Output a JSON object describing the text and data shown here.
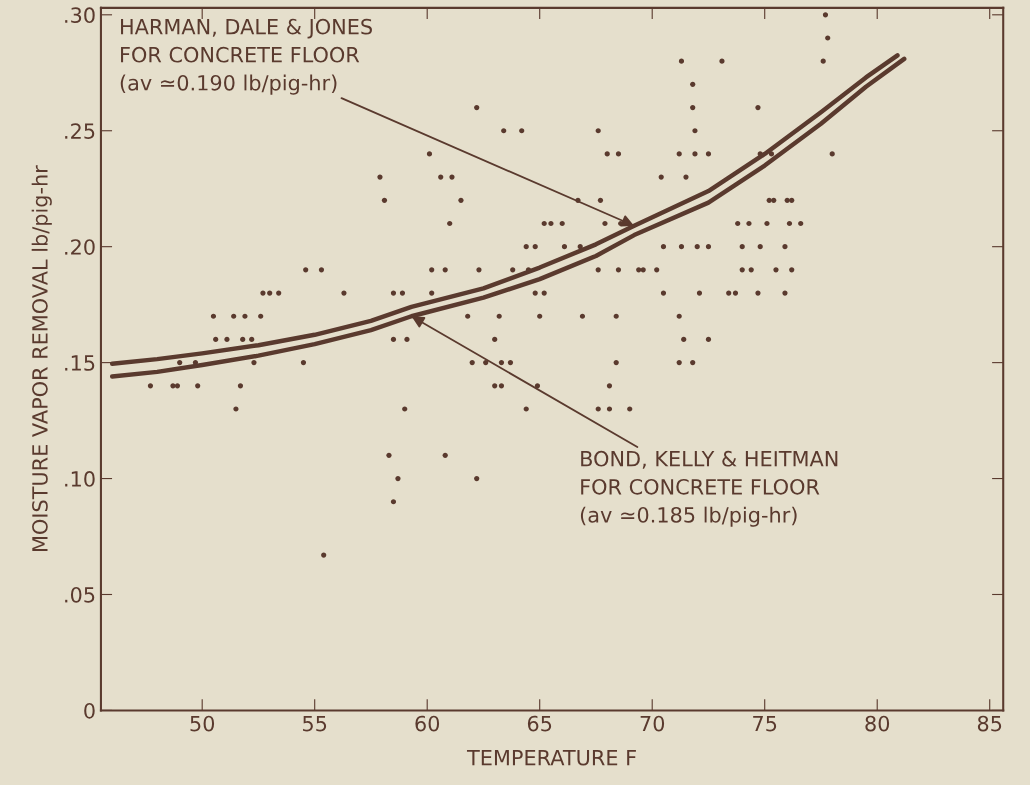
{
  "chart_data": {
    "type": "scatter",
    "xlabel": "TEMPERATURE F",
    "ylabel": "MOISTURE VAPOR REMOVAL lb/pig-hr",
    "xlim": [
      45.5,
      85.6
    ],
    "xticks": [
      50,
      55,
      60,
      65,
      70,
      75,
      80,
      85
    ],
    "ylim": [
      0,
      0.303
    ],
    "yticks": [
      {
        "value": 0,
        "label": "0"
      },
      {
        "value": 0.05,
        "label": ".05"
      },
      {
        "value": 0.1,
        "label": ".10"
      },
      {
        "value": 0.15,
        "label": ".15"
      },
      {
        "value": 0.2,
        "label": ".20"
      },
      {
        "value": 0.25,
        "label": ".25"
      },
      {
        "value": 0.3,
        "label": ".30"
      }
    ],
    "grid": false,
    "legend": false,
    "marker": "circle",
    "series": [
      {
        "color": "#5a3a2e",
        "x": [
          57.9,
          58.1,
          54.6,
          55.3,
          52.7,
          53.0,
          53.4,
          56.3,
          58.5,
          50.5,
          51.4,
          51.9,
          52.6,
          50.6,
          51.1,
          51.8,
          52.2,
          58.5,
          54.5,
          49.0,
          49.7,
          52.3,
          47.7,
          48.7,
          48.9,
          49.8,
          51.7,
          51.5,
          62.2,
          63.4,
          64.2,
          67.6,
          60.1,
          68.0,
          68.5,
          71.2,
          60.6,
          61.1,
          70.4,
          61.5,
          66.7,
          67.7,
          61.0,
          65.2,
          65.5,
          66.0,
          67.9,
          68.6,
          64.4,
          64.8,
          66.1,
          66.8,
          70.5,
          60.2,
          60.8,
          62.3,
          63.8,
          64.5,
          67.6,
          68.5,
          69.4,
          70.2,
          58.9,
          60.2,
          64.8,
          65.2,
          70.5,
          61.8,
          63.2,
          65.0,
          66.9,
          68.4,
          71.2,
          59.1,
          63.0,
          62.0,
          62.6,
          63.3,
          63.7,
          68.4,
          71.2,
          63.0,
          63.3,
          64.9,
          68.1,
          59.0,
          64.4,
          67.6,
          68.1,
          69.0,
          58.3,
          60.8,
          58.7,
          62.2,
          58.5,
          55.4,
          77.7,
          77.8,
          77.6,
          71.3,
          73.1,
          71.8,
          71.8,
          74.7,
          71.9,
          71.9,
          72.5,
          74.8,
          75.3,
          78.0,
          71.5,
          75.2,
          75.4,
          76.0,
          76.2,
          73.8,
          74.3,
          75.1,
          76.1,
          76.6,
          71.3,
          72.0,
          72.5,
          74.0,
          74.8,
          75.9,
          69.6,
          74.0,
          74.4,
          75.5,
          76.2,
          72.1,
          73.4,
          73.7,
          74.7,
          75.9,
          71.4,
          72.5,
          71.8
        ],
        "values": [
          0.23,
          0.22,
          0.19,
          0.19,
          0.18,
          0.18,
          0.18,
          0.18,
          0.18,
          0.17,
          0.17,
          0.17,
          0.17,
          0.16,
          0.16,
          0.16,
          0.16,
          0.16,
          0.15,
          0.15,
          0.15,
          0.15,
          0.14,
          0.14,
          0.14,
          0.14,
          0.14,
          0.13,
          0.26,
          0.25,
          0.25,
          0.25,
          0.24,
          0.24,
          0.24,
          0.24,
          0.23,
          0.23,
          0.23,
          0.22,
          0.22,
          0.22,
          0.21,
          0.21,
          0.21,
          0.21,
          0.21,
          0.21,
          0.2,
          0.2,
          0.2,
          0.2,
          0.2,
          0.19,
          0.19,
          0.19,
          0.19,
          0.19,
          0.19,
          0.19,
          0.19,
          0.19,
          0.18,
          0.18,
          0.18,
          0.18,
          0.18,
          0.17,
          0.17,
          0.17,
          0.17,
          0.17,
          0.17,
          0.16,
          0.16,
          0.15,
          0.15,
          0.15,
          0.15,
          0.15,
          0.15,
          0.14,
          0.14,
          0.14,
          0.14,
          0.13,
          0.13,
          0.13,
          0.13,
          0.13,
          0.11,
          0.11,
          0.1,
          0.1,
          0.09,
          0.067,
          0.3,
          0.29,
          0.28,
          0.28,
          0.28,
          0.27,
          0.26,
          0.26,
          0.25,
          0.24,
          0.24,
          0.24,
          0.24,
          0.24,
          0.23,
          0.22,
          0.22,
          0.22,
          0.22,
          0.21,
          0.21,
          0.21,
          0.21,
          0.21,
          0.2,
          0.2,
          0.2,
          0.2,
          0.2,
          0.2,
          0.19,
          0.19,
          0.19,
          0.19,
          0.19,
          0.18,
          0.18,
          0.18,
          0.18,
          0.18,
          0.16,
          0.16,
          0.15
        ]
      },
      {
        "type": "line",
        "color": "#5a3a2e",
        "marker": "none",
        "x": [
          46,
          48,
          50,
          52.5,
          55,
          57.5,
          59.3,
          62.5,
          65,
          67.5,
          69.2,
          72.5,
          75,
          77.5,
          79.5,
          80.9
        ],
        "values": [
          0.1495,
          0.1515,
          0.154,
          0.1575,
          0.162,
          0.168,
          0.174,
          0.182,
          0.191,
          0.201,
          0.209,
          0.224,
          0.24,
          0.258,
          0.273,
          0.2825
        ]
      },
      {
        "type": "line",
        "color": "#5a3a2e",
        "marker": "none",
        "x": [
          46,
          48,
          50,
          52.5,
          55,
          57.5,
          59.3,
          62.5,
          65,
          67.5,
          69.2,
          72.5,
          75,
          77.5,
          79.5,
          81.2
        ],
        "values": [
          0.144,
          0.146,
          0.149,
          0.153,
          0.158,
          0.164,
          0.17,
          0.178,
          0.186,
          0.196,
          0.205,
          0.219,
          0.235,
          0.253,
          0.269,
          0.281
        ]
      }
    ],
    "annotations": [
      {
        "text": "HARMAN, DALE & JONES\nFOR CONCRETE FLOOR\n(av ≃0.190 lb/pig-hr)",
        "x": 69.2,
        "y": 0.209
      },
      {
        "text": "BOND, KELLY & HEITMAN\nFOR CONCRETE FLOOR\n(av ≃0.185 lb/pig-hr)",
        "x": 59.3,
        "y": 0.17
      }
    ]
  }
}
